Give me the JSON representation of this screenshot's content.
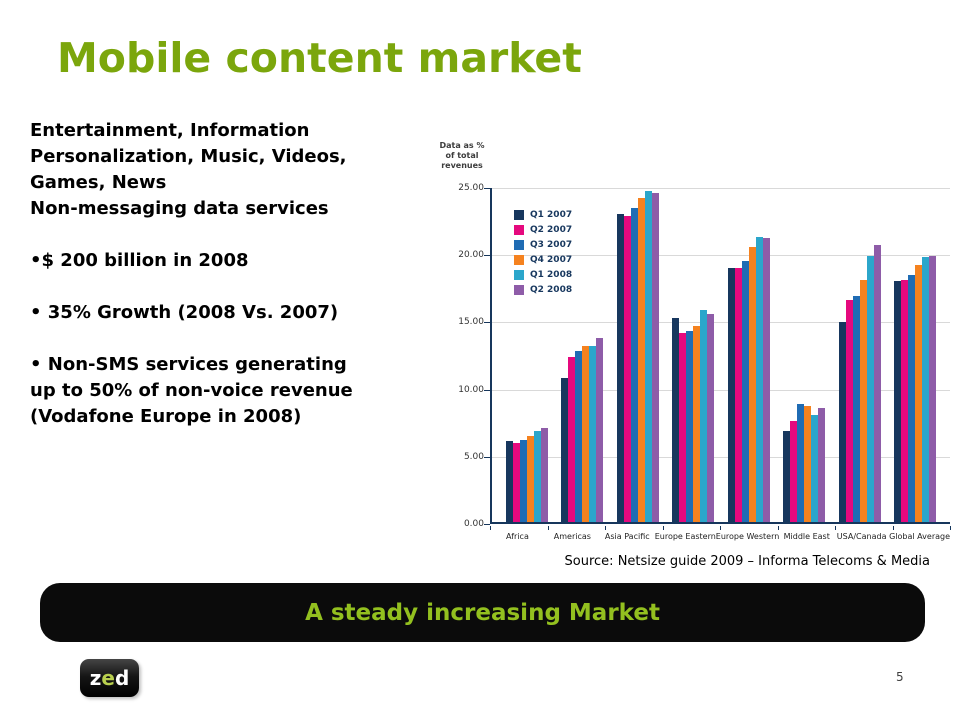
{
  "slide": {
    "title": "Mobile content market",
    "source": "Source: Netsize guide 2009 – Informa Telecoms & Media",
    "banner_text": "A steady increasing Market",
    "page_number": "5"
  },
  "logo": {
    "z": "z",
    "e": "e",
    "d": "d"
  },
  "left_text": {
    "intro_lines": [
      "Entertainment, Information",
      "Personalization, Music, Videos,",
      "Games, News",
      "Non-messaging data services"
    ],
    "bullet_1": "•$ 200 billion in 2008",
    "bullet_2": "• 35% Growth (2008 Vs. 2007)",
    "bullet_3_lines": [
      "• Non-SMS services generating",
      "up to 50% of non-voice revenue",
      "(Vodafone Europe in 2008)"
    ]
  },
  "chart_data": {
    "type": "bar",
    "title_lines": [
      "Data as %",
      "of total revenues"
    ],
    "categories": [
      "Africa",
      "Americas",
      "Asia Pacific",
      "Europe Eastern",
      "Europe Western",
      "Middle East",
      "USA/Canada",
      "Global Average"
    ],
    "series": [
      {
        "name": "Q1 2007",
        "color": "#17375E",
        "values": [
          6.0,
          10.7,
          22.9,
          15.2,
          18.9,
          6.8,
          14.9,
          17.9
        ]
      },
      {
        "name": "Q2 2007",
        "color": "#E5097E",
        "values": [
          5.9,
          12.3,
          22.8,
          14.1,
          18.9,
          7.5,
          16.5,
          18.0
        ]
      },
      {
        "name": "Q3 2007",
        "color": "#1F6CB4",
        "values": [
          6.1,
          12.7,
          23.4,
          14.2,
          19.4,
          8.8,
          16.8,
          18.4
        ]
      },
      {
        "name": "Q4 2007",
        "color": "#F5821F",
        "values": [
          6.4,
          13.1,
          24.1,
          14.6,
          20.5,
          8.6,
          18.0,
          19.1
        ]
      },
      {
        "name": "Q1 2008",
        "color": "#2BA6CB",
        "values": [
          6.8,
          13.1,
          24.6,
          15.8,
          21.2,
          8.0,
          19.8,
          19.7
        ]
      },
      {
        "name": "Q2 2008",
        "color": "#8E5CA8",
        "values": [
          7.0,
          13.7,
          24.5,
          15.5,
          21.1,
          8.5,
          20.6,
          19.8
        ]
      }
    ],
    "ylim": [
      0,
      25
    ],
    "yticks": [
      "25.00",
      "20.00",
      "15.00",
      "10.00",
      "5.00",
      "0.00"
    ],
    "grid": true,
    "legend_position": "top-left-inside"
  },
  "colors": {
    "title_green": "#7BA60C",
    "banner_green": "#93C01F",
    "banner_bg": "#0B0B0B",
    "axis": "#16365C",
    "gridline": "#D9D9D9",
    "logo_e_green": "#B8CF4E"
  }
}
